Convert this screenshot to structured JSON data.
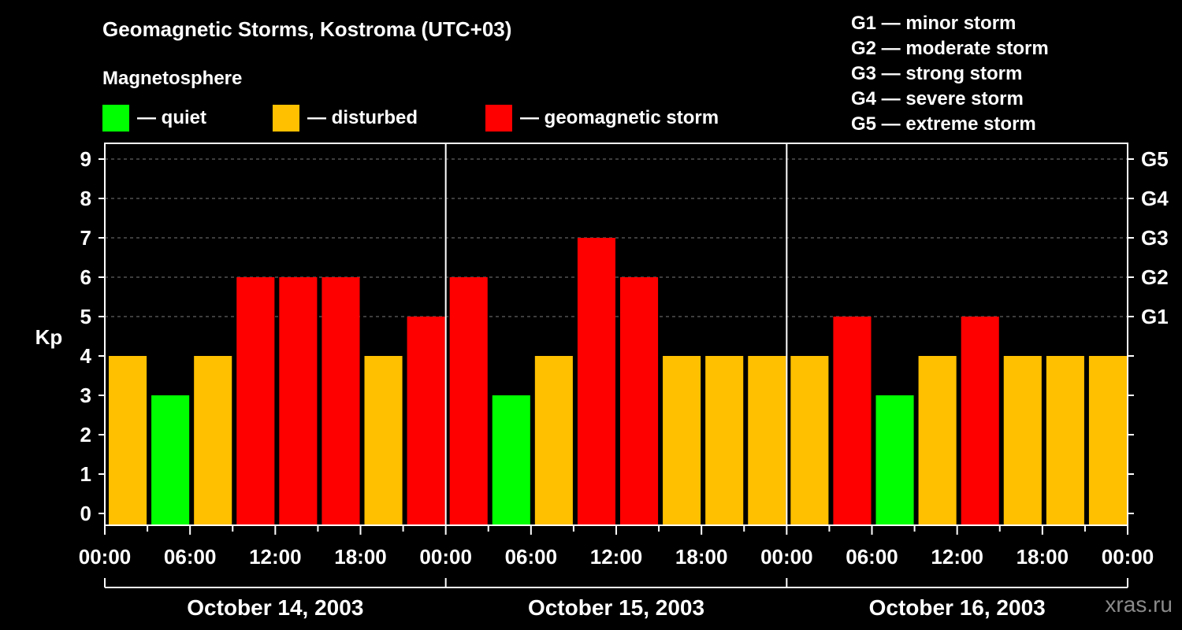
{
  "title": "Geomagnetic Storms, Kostroma (UTC+03)",
  "subtitle": "Magnetosphere",
  "legend": [
    {
      "label": "— quiet",
      "color": "#00ff00"
    },
    {
      "label": "— disturbed",
      "color": "#ffc000"
    },
    {
      "label": "— geomagnetic storm",
      "color": "#ff0000"
    }
  ],
  "g_levels": [
    "G1 — minor storm",
    "G2 — moderate storm",
    "G3 — strong storm",
    "G4 — severe storm",
    "G5 — extreme storm"
  ],
  "watermark": "xras.ru",
  "chart_data": {
    "type": "bar",
    "ylabel": "Kp",
    "ylim": [
      0,
      9
    ],
    "yticks": [
      0,
      1,
      2,
      3,
      4,
      5,
      6,
      7,
      8,
      9
    ],
    "right_axis_labels": [
      {
        "label": "G1",
        "kp": 5
      },
      {
        "label": "G2",
        "kp": 6
      },
      {
        "label": "G3",
        "kp": 7
      },
      {
        "label": "G4",
        "kp": 8
      },
      {
        "label": "G5",
        "kp": 9
      }
    ],
    "grid": true,
    "xtick_labels": [
      "00:00",
      "06:00",
      "12:00",
      "18:00",
      "00:00",
      "06:00",
      "12:00",
      "18:00",
      "00:00",
      "06:00",
      "12:00",
      "18:00",
      "00:00"
    ],
    "days": [
      "October 14, 2003",
      "October 15, 2003",
      "October 16, 2003"
    ],
    "bars_per_day": 8,
    "values": [
      4,
      3,
      4,
      6,
      6,
      6,
      4,
      5,
      6,
      3,
      4,
      7,
      6,
      4,
      4,
      4,
      4,
      5,
      3,
      4,
      5,
      4,
      4,
      4
    ],
    "colors": {
      "quiet": "#00ff00",
      "disturbed": "#ffc000",
      "storm": "#ff0000"
    },
    "thresholds": {
      "disturbed_min": 4,
      "storm_min": 5
    }
  }
}
